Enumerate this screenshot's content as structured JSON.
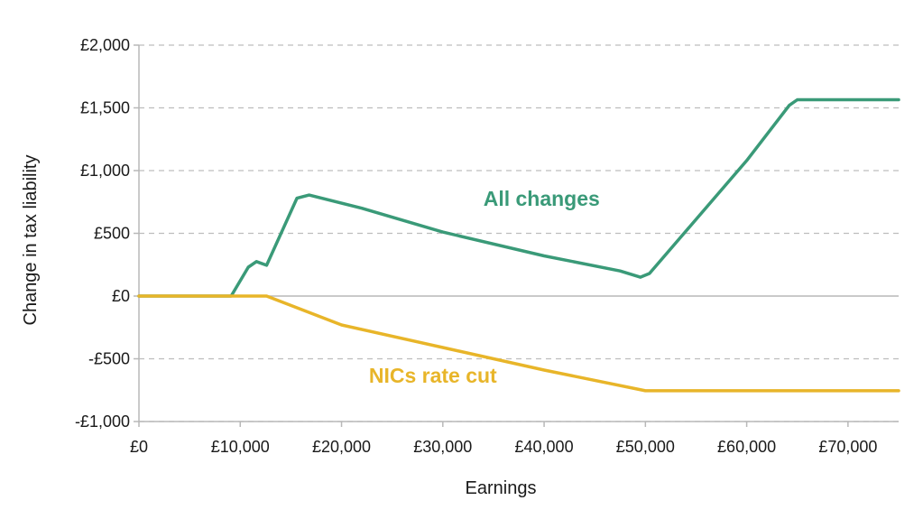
{
  "chart_data": {
    "type": "line",
    "title": "",
    "xlabel": "Earnings",
    "ylabel": "Change in tax liability",
    "xlim": [
      0,
      75000
    ],
    "ylim": [
      -1000,
      2000
    ],
    "grid": true,
    "x_ticks": [
      0,
      10000,
      20000,
      30000,
      40000,
      50000,
      60000,
      70000
    ],
    "x_tick_labels": [
      "£0",
      "£10,000",
      "£20,000",
      "£30,000",
      "£40,000",
      "£50,000",
      "£60,000",
      "£70,000"
    ],
    "y_ticks": [
      2000,
      1500,
      1000,
      500,
      0,
      -500,
      -1000
    ],
    "y_tick_labels": [
      "£2,000",
      "£1,500",
      "£1,000",
      "£500",
      "£0",
      "-£500",
      "-£1,000"
    ],
    "series": [
      {
        "name": "All changes",
        "color": "#3a9a78",
        "label_at": [
          34000,
          720
        ],
        "points": [
          [
            0,
            0
          ],
          [
            9100,
            0
          ],
          [
            10800,
            230
          ],
          [
            11600,
            275
          ],
          [
            12600,
            245
          ],
          [
            15600,
            780
          ],
          [
            16800,
            805
          ],
          [
            22000,
            700
          ],
          [
            30000,
            510
          ],
          [
            40000,
            320
          ],
          [
            47500,
            200
          ],
          [
            49500,
            150
          ],
          [
            50400,
            180
          ],
          [
            60000,
            1080
          ],
          [
            64200,
            1520
          ],
          [
            65000,
            1565
          ],
          [
            75000,
            1565
          ]
        ]
      },
      {
        "name": "NICs rate cut",
        "color": "#e8b529",
        "label_at": [
          22700,
          -690
        ],
        "points": [
          [
            0,
            0
          ],
          [
            12600,
            0
          ],
          [
            20000,
            -230
          ],
          [
            30000,
            -410
          ],
          [
            40000,
            -590
          ],
          [
            50000,
            -755
          ],
          [
            75000,
            -755
          ]
        ]
      }
    ]
  }
}
